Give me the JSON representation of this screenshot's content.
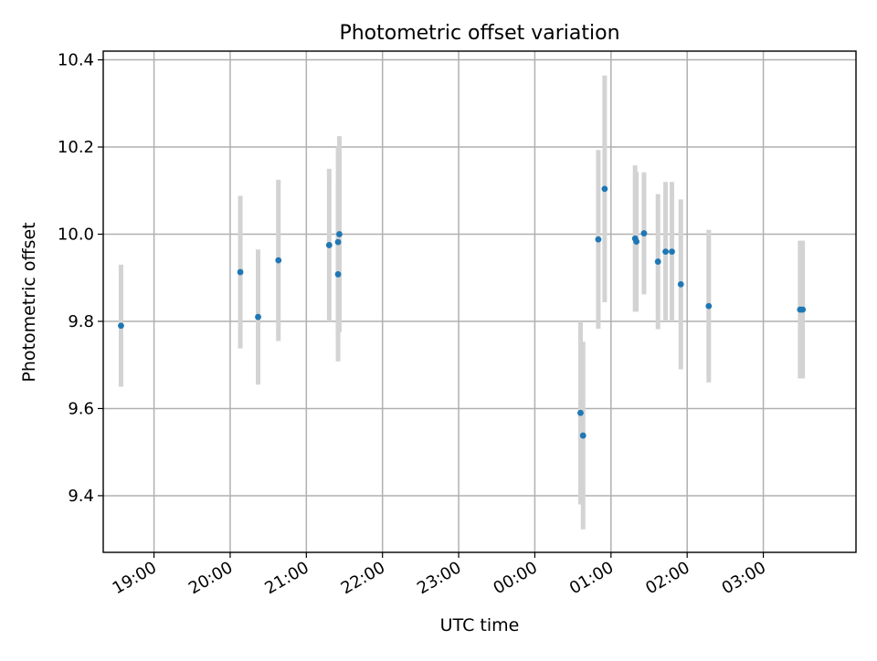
{
  "chart_data": {
    "type": "scatter",
    "title": "Photometric offset variation",
    "xlabel": "UTC time",
    "ylabel": "Photometric offset",
    "x_unit": "datetime (UTC)",
    "xlim": [
      "18:20",
      "04:13"
    ],
    "ylim": [
      9.27,
      10.42
    ],
    "x_ticks": [
      "19:00",
      "20:00",
      "21:00",
      "22:00",
      "23:00",
      "00:00",
      "01:00",
      "02:00",
      "03:00"
    ],
    "y_ticks": [
      "9.4",
      "9.6",
      "9.8",
      "10.0",
      "10.2",
      "10.4"
    ],
    "grid": true,
    "legend": "none",
    "marker_color": "#1f77b4",
    "errorbar_color": "#d3d3d3",
    "points": [
      {
        "x": "18:34",
        "y": 9.79,
        "err": 0.14
      },
      {
        "x": "20:08",
        "y": 9.913,
        "err": 0.175
      },
      {
        "x": "20:22",
        "y": 9.81,
        "err": 0.155
      },
      {
        "x": "20:38",
        "y": 9.94,
        "err": 0.185
      },
      {
        "x": "21:18",
        "y": 9.975,
        "err": 0.175
      },
      {
        "x": "21:25",
        "y": 9.982,
        "err": 0.22
      },
      {
        "x": "21:25",
        "y": 9.908,
        "err": 0.2
      },
      {
        "x": "21:26",
        "y": 10.0,
        "err": 0.225
      },
      {
        "x": "00:36",
        "y": 9.59,
        "err": 0.21
      },
      {
        "x": "00:38",
        "y": 9.538,
        "err": 0.215
      },
      {
        "x": "00:50",
        "y": 9.988,
        "err": 0.205
      },
      {
        "x": "00:55",
        "y": 10.104,
        "err": 0.26
      },
      {
        "x": "01:19",
        "y": 9.99,
        "err": 0.168
      },
      {
        "x": "01:20",
        "y": 9.983,
        "err": 0.16
      },
      {
        "x": "01:26",
        "y": 10.002,
        "err": 0.14
      },
      {
        "x": "01:37",
        "y": 9.937,
        "err": 0.155
      },
      {
        "x": "01:43",
        "y": 9.96,
        "err": 0.16
      },
      {
        "x": "01:48",
        "y": 9.96,
        "err": 0.16
      },
      {
        "x": "01:55",
        "y": 9.885,
        "err": 0.195
      },
      {
        "x": "02:17",
        "y": 9.835,
        "err": 0.175
      },
      {
        "x": "03:29",
        "y": 9.827,
        "err": 0.158
      },
      {
        "x": "03:31",
        "y": 9.827,
        "err": 0.158
      }
    ]
  }
}
